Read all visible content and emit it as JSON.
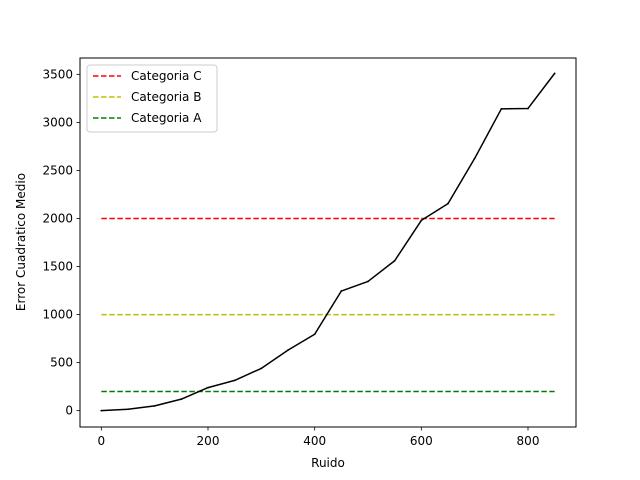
{
  "chart_data": {
    "type": "line",
    "title": "",
    "xlabel": "Ruido",
    "ylabel": "Error Cuadratico Medio",
    "xlim": [
      -40,
      890
    ],
    "ylim": [
      -170,
      3670
    ],
    "xticks": [
      0,
      200,
      400,
      600,
      800
    ],
    "yticks": [
      0,
      500,
      1000,
      1500,
      2000,
      2500,
      3000,
      3500
    ],
    "grid": false,
    "legend_position": "upper left",
    "x": [
      0,
      50,
      100,
      150,
      200,
      250,
      300,
      350,
      400,
      450,
      500,
      550,
      600,
      650,
      700,
      750,
      800,
      850
    ],
    "series": [
      {
        "values": [
          0,
          15,
          50,
          120,
          240,
          315,
          440,
          630,
          795,
          1245,
          1345,
          1560,
          1980,
          2155,
          2625,
          3140,
          3145,
          3510
        ],
        "color": "#000000",
        "style": "solid",
        "in_legend": false
      }
    ],
    "hlines": [
      {
        "name": "Categoria C",
        "y": 2000,
        "x_range": [
          0,
          850
        ],
        "color": "#ff0000",
        "style": "dashed"
      },
      {
        "name": "Categoria B",
        "y": 1000,
        "x_range": [
          0,
          850
        ],
        "color": "#bfbf00",
        "style": "dashed"
      },
      {
        "name": "Categoria A",
        "y": 200,
        "x_range": [
          0,
          850
        ],
        "color": "#008000",
        "style": "dashed"
      }
    ]
  }
}
